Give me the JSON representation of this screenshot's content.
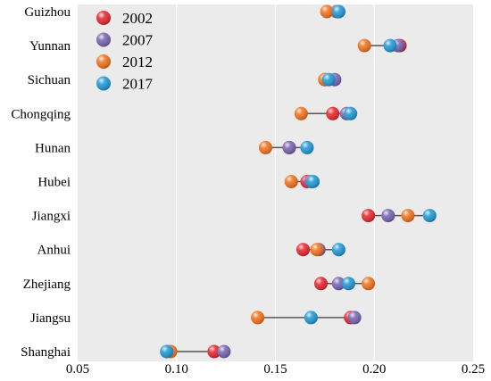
{
  "chart_data": {
    "type": "scatter",
    "title": "",
    "xlabel": "",
    "ylabel": "",
    "xlim": [
      0.05,
      0.25
    ],
    "xticks": [
      0.05,
      0.1,
      0.15,
      0.2,
      0.25
    ],
    "xtick_labels": [
      "0.05",
      "0.10",
      "0.15",
      "0.20",
      "0.25"
    ],
    "grid": "vertical",
    "legend_position": "top-left",
    "categories": [
      "Guizhou",
      "Yunnan",
      "Sichuan",
      "Chongqing",
      "Hunan",
      "Hubei",
      "Jiangxi",
      "Anhui",
      "Zhejiang",
      "Jiangsu",
      "Shanghai"
    ],
    "series": [
      {
        "name": "2002",
        "color": "#e8202a",
        "values": [
          0.182,
          0.213,
          0.175,
          0.179,
          0.157,
          0.166,
          0.197,
          0.164,
          0.173,
          0.188,
          0.119
        ]
      },
      {
        "name": "2007",
        "color": "#7560b0",
        "values": [
          0.181,
          0.212,
          0.18,
          0.186,
          0.157,
          0.168,
          0.207,
          0.172,
          0.182,
          0.19,
          0.124
        ]
      },
      {
        "name": "2012",
        "color": "#f07018",
        "values": [
          0.176,
          0.195,
          0.175,
          0.163,
          0.145,
          0.158,
          0.217,
          0.171,
          0.197,
          0.141,
          0.097
        ]
      },
      {
        "name": "2017",
        "color": "#1a96d4",
        "values": [
          0.182,
          0.208,
          0.177,
          0.188,
          0.166,
          0.169,
          0.228,
          0.182,
          0.187,
          0.168,
          0.095
        ]
      }
    ]
  }
}
